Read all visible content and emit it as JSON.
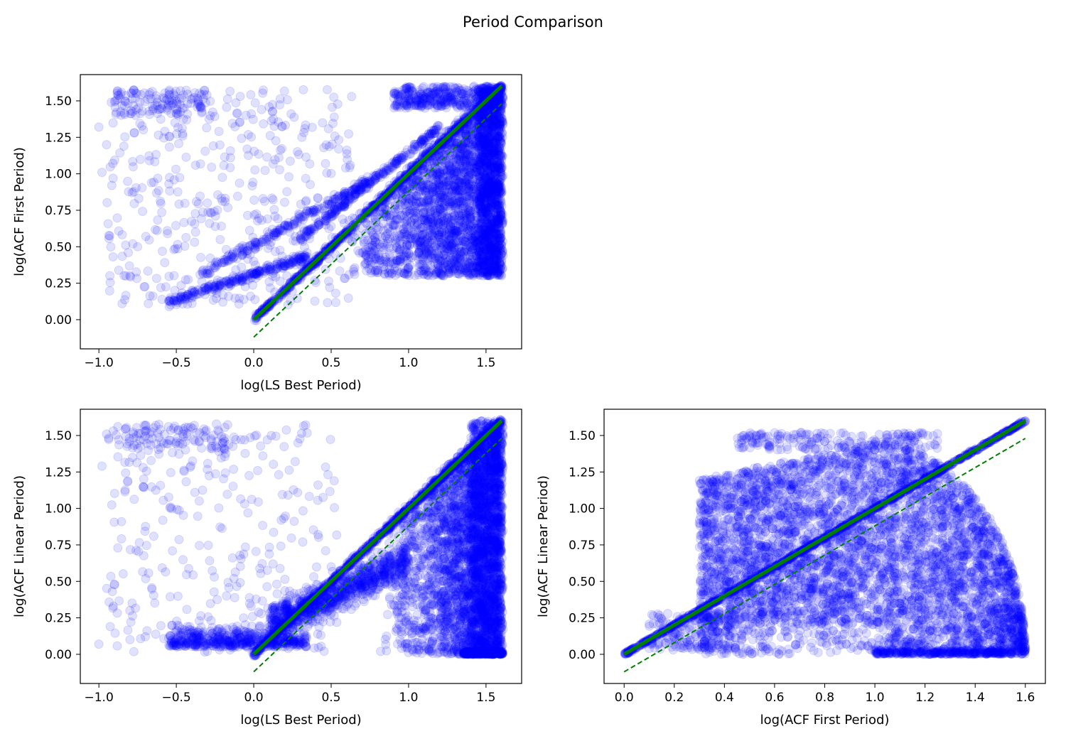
{
  "figure": {
    "suptitle": "Period Comparison"
  },
  "colors": {
    "points": "#0000ff",
    "line": "#008000"
  },
  "chart_data": [
    {
      "type": "scatter",
      "id": "top-left",
      "title": "",
      "xlabel": "log(LS Best Period)",
      "ylabel": "log(ACF First Period)",
      "xlim": [
        -1.12,
        1.73
      ],
      "ylim": [
        -0.2,
        1.68
      ],
      "xticks": [
        -1.0,
        -0.5,
        0.0,
        0.5,
        1.0,
        1.5
      ],
      "xtick_labels": [
        "−1.0",
        "−0.5",
        "0.0",
        "0.5",
        "1.0",
        "1.5"
      ],
      "yticks": [
        0.0,
        0.25,
        0.5,
        0.75,
        1.0,
        1.25,
        1.5
      ],
      "ytick_labels": [
        "0.00",
        "0.25",
        "0.50",
        "0.75",
        "1.00",
        "1.25",
        "1.50"
      ],
      "grid": false,
      "legend": "none",
      "reference_lines": [
        {
          "style": "solid",
          "x": [
            0.0,
            1.6
          ],
          "y": [
            0.0,
            1.6
          ]
        },
        {
          "style": "dashed",
          "x": [
            0.0,
            1.6
          ],
          "y": [
            0.01,
            1.61
          ]
        },
        {
          "style": "dashed",
          "x": [
            0.0,
            1.6
          ],
          "y": [
            -0.12,
            1.48
          ]
        }
      ],
      "points_sample": [
        [
          -1.0,
          1.32
        ],
        [
          -0.98,
          1.01
        ],
        [
          -0.95,
          1.2
        ],
        [
          -0.92,
          1.49
        ],
        [
          -0.85,
          0.11
        ],
        [
          -0.8,
          0.3
        ],
        [
          -0.75,
          0.5
        ],
        [
          -0.6,
          0.22
        ],
        [
          -0.5,
          0.13
        ],
        [
          -0.4,
          0.2
        ],
        [
          -0.2,
          0.12
        ],
        [
          0.0,
          0.4
        ],
        [
          0.1,
          0.26
        ],
        [
          0.3,
          0.42
        ],
        [
          0.5,
          0.64
        ],
        [
          0.7,
          0.96
        ],
        [
          1.0,
          0.8
        ],
        [
          1.2,
          1.0
        ],
        [
          1.4,
          0.7
        ],
        [
          1.5,
          0.5
        ],
        [
          1.55,
          1.2
        ],
        [
          1.6,
          1.6
        ],
        [
          1.6,
          0.3
        ]
      ]
    },
    {
      "type": "scatter",
      "id": "bottom-left",
      "title": "",
      "xlabel": "log(LS Best Period)",
      "ylabel": "log(ACF Linear Period)",
      "xlim": [
        -1.12,
        1.73
      ],
      "ylim": [
        -0.2,
        1.68
      ],
      "xticks": [
        -1.0,
        -0.5,
        0.0,
        0.5,
        1.0,
        1.5
      ],
      "xtick_labels": [
        "−1.0",
        "−0.5",
        "0.0",
        "0.5",
        "1.0",
        "1.5"
      ],
      "yticks": [
        0.0,
        0.25,
        0.5,
        0.75,
        1.0,
        1.25,
        1.5
      ],
      "ytick_labels": [
        "0.00",
        "0.25",
        "0.50",
        "0.75",
        "1.00",
        "1.25",
        "1.50"
      ],
      "grid": false,
      "legend": "none",
      "reference_lines": [
        {
          "style": "solid",
          "x": [
            0.0,
            1.6
          ],
          "y": [
            0.0,
            1.6
          ]
        },
        {
          "style": "dashed",
          "x": [
            0.0,
            1.6
          ],
          "y": [
            0.01,
            1.61
          ]
        },
        {
          "style": "dashed",
          "x": [
            0.0,
            1.6
          ],
          "y": [
            -0.12,
            1.48
          ]
        }
      ],
      "points_sample": [
        [
          -1.0,
          0.07
        ],
        [
          -0.98,
          1.29
        ],
        [
          -0.95,
          1.51
        ],
        [
          -0.9,
          0.48
        ],
        [
          -0.8,
          0.3
        ],
        [
          -0.7,
          0.12
        ],
        [
          -0.5,
          0.06
        ],
        [
          -0.3,
          0.02
        ],
        [
          -0.1,
          0.15
        ],
        [
          0.0,
          0.05
        ],
        [
          0.2,
          0.3
        ],
        [
          0.5,
          0.6
        ],
        [
          0.8,
          0.7
        ],
        [
          1.0,
          0.5
        ],
        [
          1.2,
          0.9
        ],
        [
          1.4,
          0.3
        ],
        [
          1.55,
          0.0
        ],
        [
          1.6,
          1.6
        ]
      ]
    },
    {
      "type": "scatter",
      "id": "bottom-right",
      "title": "",
      "xlabel": "log(ACF First Period)",
      "ylabel": "log(ACF Linear Period)",
      "xlim": [
        -0.08,
        1.68
      ],
      "ylim": [
        -0.2,
        1.68
      ],
      "xticks": [
        0.0,
        0.2,
        0.4,
        0.6,
        0.8,
        1.0,
        1.2,
        1.4,
        1.6
      ],
      "xtick_labels": [
        "0.0",
        "0.2",
        "0.4",
        "0.6",
        "0.8",
        "1.0",
        "1.2",
        "1.4",
        "1.6"
      ],
      "yticks": [
        0.0,
        0.25,
        0.5,
        0.75,
        1.0,
        1.25,
        1.5
      ],
      "ytick_labels": [
        "0.00",
        "0.25",
        "0.50",
        "0.75",
        "1.00",
        "1.25",
        "1.50"
      ],
      "grid": false,
      "legend": "none",
      "reference_lines": [
        {
          "style": "solid",
          "x": [
            0.0,
            1.6
          ],
          "y": [
            0.0,
            1.6
          ]
        },
        {
          "style": "dashed",
          "x": [
            0.0,
            1.6
          ],
          "y": [
            0.01,
            1.61
          ]
        },
        {
          "style": "dashed",
          "x": [
            0.0,
            1.6
          ],
          "y": [
            -0.12,
            1.48
          ]
        }
      ],
      "points_sample": [
        [
          0.1,
          0.04
        ],
        [
          0.2,
          0.1
        ],
        [
          0.3,
          0.9
        ],
        [
          0.35,
          1.2
        ],
        [
          0.5,
          1.5
        ],
        [
          0.8,
          1.46
        ],
        [
          1.0,
          1.4
        ],
        [
          1.2,
          1.3
        ],
        [
          1.4,
          1.0
        ],
        [
          1.5,
          0.5
        ],
        [
          1.55,
          0.2
        ],
        [
          1.3,
          0.0
        ],
        [
          1.0,
          0.02
        ],
        [
          0.6,
          0.3
        ],
        [
          1.6,
          1.6
        ]
      ]
    }
  ]
}
